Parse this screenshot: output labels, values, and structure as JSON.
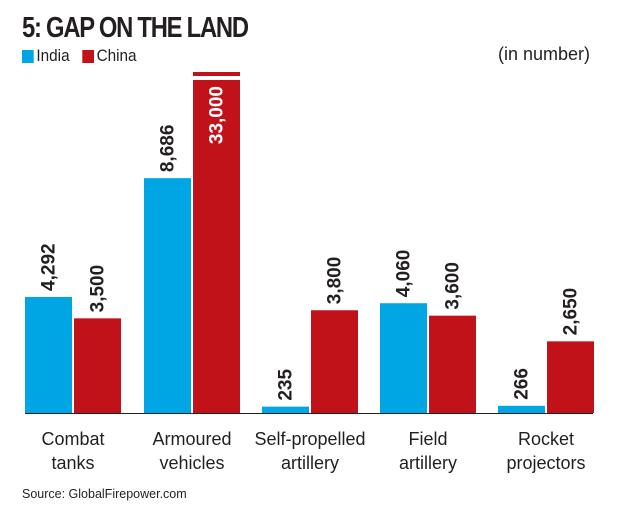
{
  "chart_data": {
    "type": "bar",
    "title": "5: GAP ON THE LAND",
    "unit_note": "(in number)",
    "categories": [
      [
        "Combat",
        "tanks"
      ],
      [
        "Armoured",
        "vehicles"
      ],
      [
        "Self-propelled",
        "artillery"
      ],
      [
        "Field",
        "artillery"
      ],
      [
        "Rocket",
        "projectors"
      ]
    ],
    "series": [
      {
        "name": "India",
        "color": "#00a6e3",
        "values": [
          4292,
          8686,
          235,
          4060,
          266
        ],
        "labels": [
          "4,292",
          "8,686",
          "235",
          "4,060",
          "266"
        ]
      },
      {
        "name": "China",
        "color": "#c1121a",
        "values": [
          3500,
          33000,
          3800,
          3600,
          2650
        ],
        "labels": [
          "3,500",
          "33,000",
          "3,800",
          "3,600",
          "2,650"
        ]
      }
    ],
    "truncated": [
      {
        "series": "China",
        "category_index": 1,
        "note": "bar broken (axis break), value exceeds visible range"
      }
    ],
    "xlabel": "",
    "ylabel": "",
    "ylim": [
      0,
      12200
    ],
    "grid": false,
    "legend_position": "top-left",
    "source": "Source: GlobalFirepower.com"
  }
}
